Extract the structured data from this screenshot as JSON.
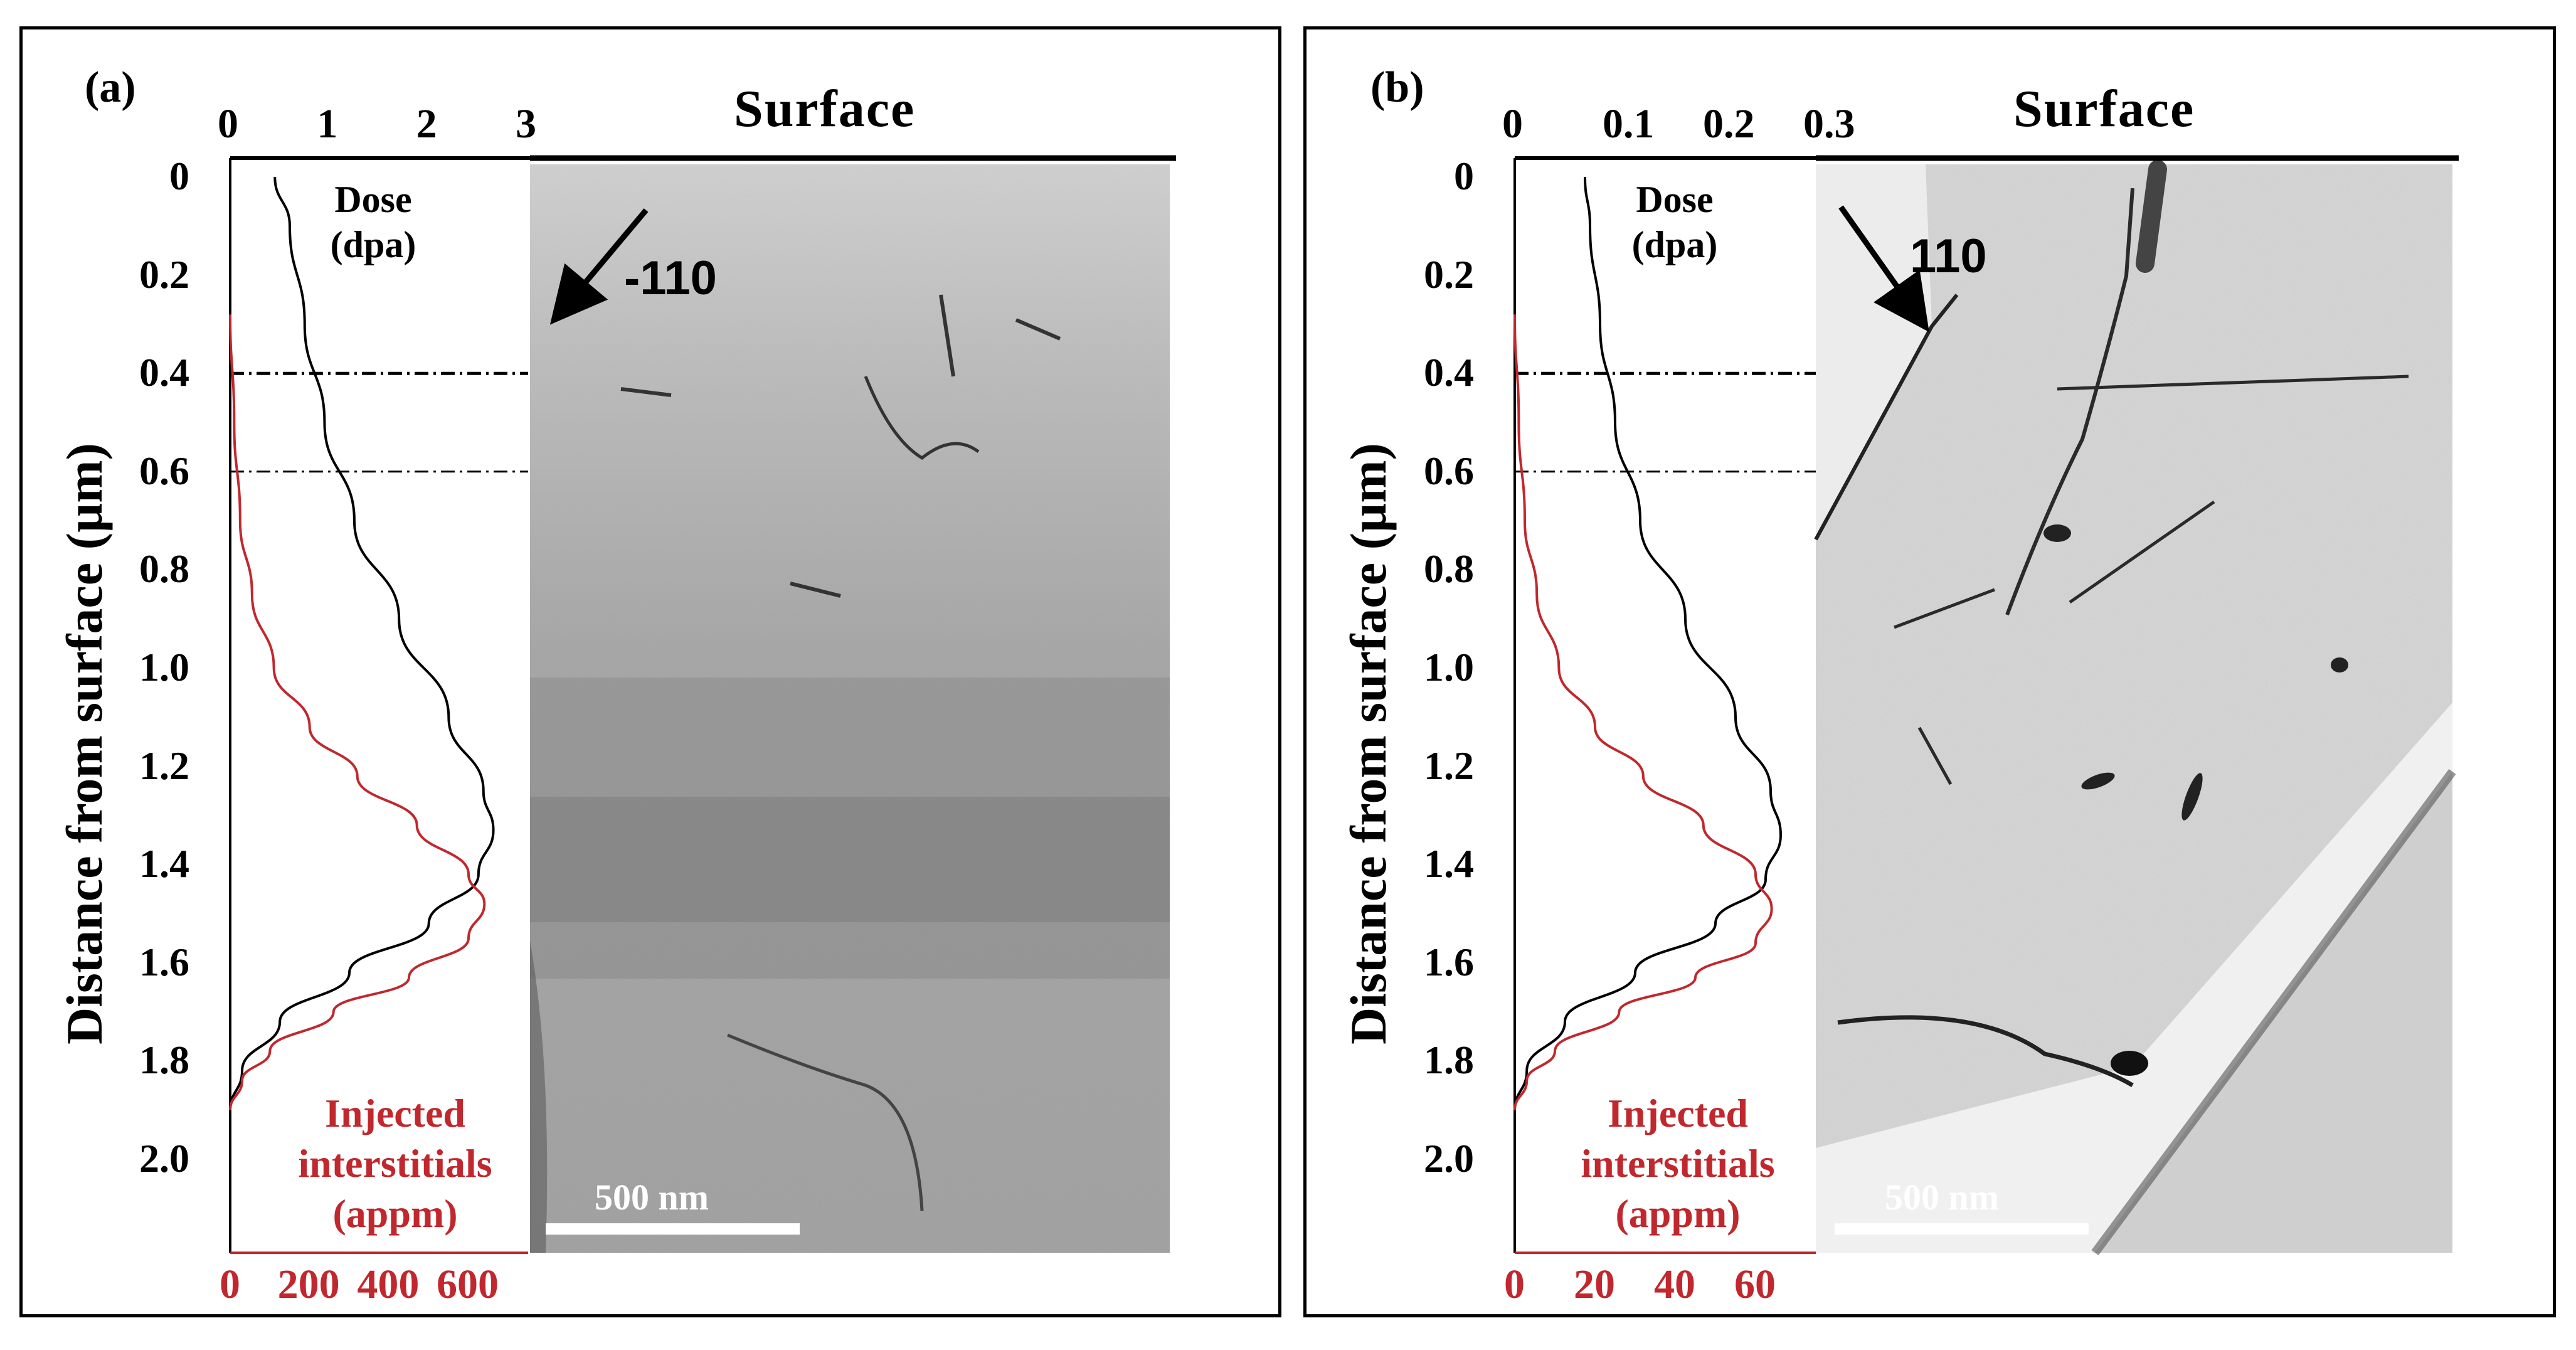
{
  "panels": [
    {
      "id": "a",
      "label": "(a)",
      "surface_label": "Surface",
      "direction_label": "-110",
      "dose_label_line1": "Dose",
      "dose_label_line2": "(dpa)",
      "interstitial_label_line1": "Injected",
      "interstitial_label_line2": "interstitials",
      "interstitial_label_line3": "(appm)",
      "scale_bar_label": "500 nm",
      "ylabel": "Distance from surface (µm)",
      "y_ticks": [
        "0",
        "0.2",
        "0.4",
        "0.6",
        "0.8",
        "1.0",
        "1.2",
        "1.4",
        "1.6",
        "1.8",
        "2.0"
      ],
      "top_ticks": [
        "0",
        "1",
        "2",
        "3"
      ],
      "bottom_ticks": [
        "0",
        "200",
        "400",
        "600"
      ]
    },
    {
      "id": "b",
      "label": "(b)",
      "surface_label": "Surface",
      "direction_label": "110",
      "dose_label_line1": "Dose",
      "dose_label_line2": "(dpa)",
      "interstitial_label_line1": "Injected",
      "interstitial_label_line2": "interstitials",
      "interstitial_label_line3": "(appm)",
      "scale_bar_label": "500 nm",
      "ylabel": "Distance from surface (µm)",
      "y_ticks": [
        "0",
        "0.2",
        "0.4",
        "0.6",
        "0.8",
        "1.0",
        "1.2",
        "1.4",
        "1.6",
        "1.8",
        "2.0"
      ],
      "top_ticks": [
        "0",
        "0.1",
        "0.2",
        "0.3"
      ],
      "bottom_ticks": [
        "0",
        "20",
        "40",
        "60"
      ]
    }
  ],
  "chart_data": [
    {
      "type": "line",
      "y_axis": {
        "ylim": [
          0,
          2.1
        ],
        "inverted": true
      },
      "top_axis": {
        "xlim": [
          0,
          3
        ]
      },
      "bottom_axis": {
        "xlim": [
          0,
          750
        ]
      },
      "series": [
        {
          "axis": "top",
          "color": "#000000",
          "points": [
            [
              0.45,
              0
            ],
            [
              0.6,
              0.1
            ],
            [
              0.75,
              0.3
            ],
            [
              0.95,
              0.5
            ],
            [
              1.25,
              0.7
            ],
            [
              1.7,
              0.9
            ],
            [
              2.2,
              1.1
            ],
            [
              2.55,
              1.25
            ],
            [
              2.65,
              1.33
            ],
            [
              2.5,
              1.42
            ],
            [
              2.0,
              1.52
            ],
            [
              1.2,
              1.62
            ],
            [
              0.5,
              1.72
            ],
            [
              0.12,
              1.82
            ],
            [
              0,
              1.9
            ]
          ]
        },
        {
          "axis": "bottom",
          "color": "#c0282d",
          "points": [
            [
              0,
              0.28
            ],
            [
              10,
              0.5
            ],
            [
              25,
              0.7
            ],
            [
              55,
              0.85
            ],
            [
              110,
              1.0
            ],
            [
              200,
              1.12
            ],
            [
              320,
              1.22
            ],
            [
              470,
              1.32
            ],
            [
              600,
              1.42
            ],
            [
              640,
              1.48
            ],
            [
              600,
              1.55
            ],
            [
              450,
              1.63
            ],
            [
              260,
              1.7
            ],
            [
              100,
              1.78
            ],
            [
              30,
              1.84
            ],
            [
              0,
              1.9
            ]
          ]
        }
      ],
      "reference_lines_y": [
        0.4,
        0.6
      ]
    },
    {
      "type": "line",
      "y_axis": {
        "ylim": [
          0,
          2.1
        ],
        "inverted": true
      },
      "top_axis": {
        "xlim": [
          0,
          0.3
        ]
      },
      "bottom_axis": {
        "xlim": [
          0,
          75
        ]
      },
      "series": [
        {
          "axis": "top",
          "color": "#000000",
          "points": [
            [
              0.07,
              0
            ],
            [
              0.075,
              0.1
            ],
            [
              0.085,
              0.3
            ],
            [
              0.1,
              0.5
            ],
            [
              0.125,
              0.7
            ],
            [
              0.17,
              0.9
            ],
            [
              0.22,
              1.1
            ],
            [
              0.255,
              1.25
            ],
            [
              0.265,
              1.34
            ],
            [
              0.25,
              1.43
            ],
            [
              0.2,
              1.52
            ],
            [
              0.12,
              1.62
            ],
            [
              0.05,
              1.72
            ],
            [
              0.012,
              1.82
            ],
            [
              0,
              1.9
            ]
          ]
        },
        {
          "axis": "bottom",
          "color": "#c0282d",
          "points": [
            [
              0,
              0.28
            ],
            [
              1,
              0.5
            ],
            [
              2.5,
              0.7
            ],
            [
              5.5,
              0.85
            ],
            [
              11,
              1.0
            ],
            [
              20,
              1.12
            ],
            [
              32,
              1.22
            ],
            [
              47,
              1.32
            ],
            [
              60,
              1.42
            ],
            [
              64,
              1.49
            ],
            [
              60,
              1.56
            ],
            [
              45,
              1.63
            ],
            [
              26,
              1.7
            ],
            [
              10,
              1.78
            ],
            [
              3,
              1.84
            ],
            [
              0,
              1.9
            ]
          ]
        }
      ],
      "reference_lines_y": [
        0.4,
        0.6
      ]
    }
  ]
}
